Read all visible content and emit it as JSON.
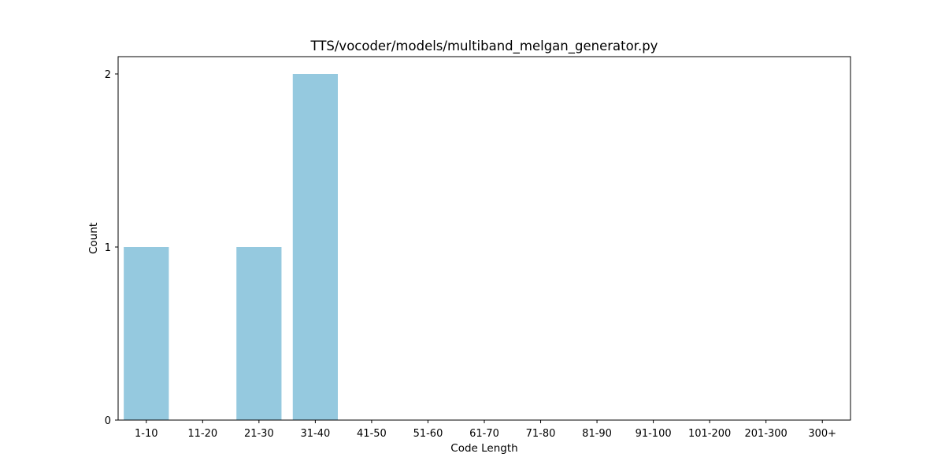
{
  "chart_data": {
    "type": "bar",
    "title": "TTS/vocoder/models/multiband_melgan_generator.py",
    "xlabel": "Code Length",
    "ylabel": "Count",
    "categories": [
      "1-10",
      "11-20",
      "21-30",
      "31-40",
      "41-50",
      "51-60",
      "61-70",
      "71-80",
      "81-90",
      "91-100",
      "101-200",
      "201-300",
      "300+"
    ],
    "values": [
      1,
      0,
      1,
      2,
      0,
      0,
      0,
      0,
      0,
      0,
      0,
      0,
      0
    ],
    "yticks": [
      0,
      1,
      2
    ],
    "ylim": [
      0,
      2.1
    ],
    "grid": false,
    "bar_color": "#95c9df"
  }
}
